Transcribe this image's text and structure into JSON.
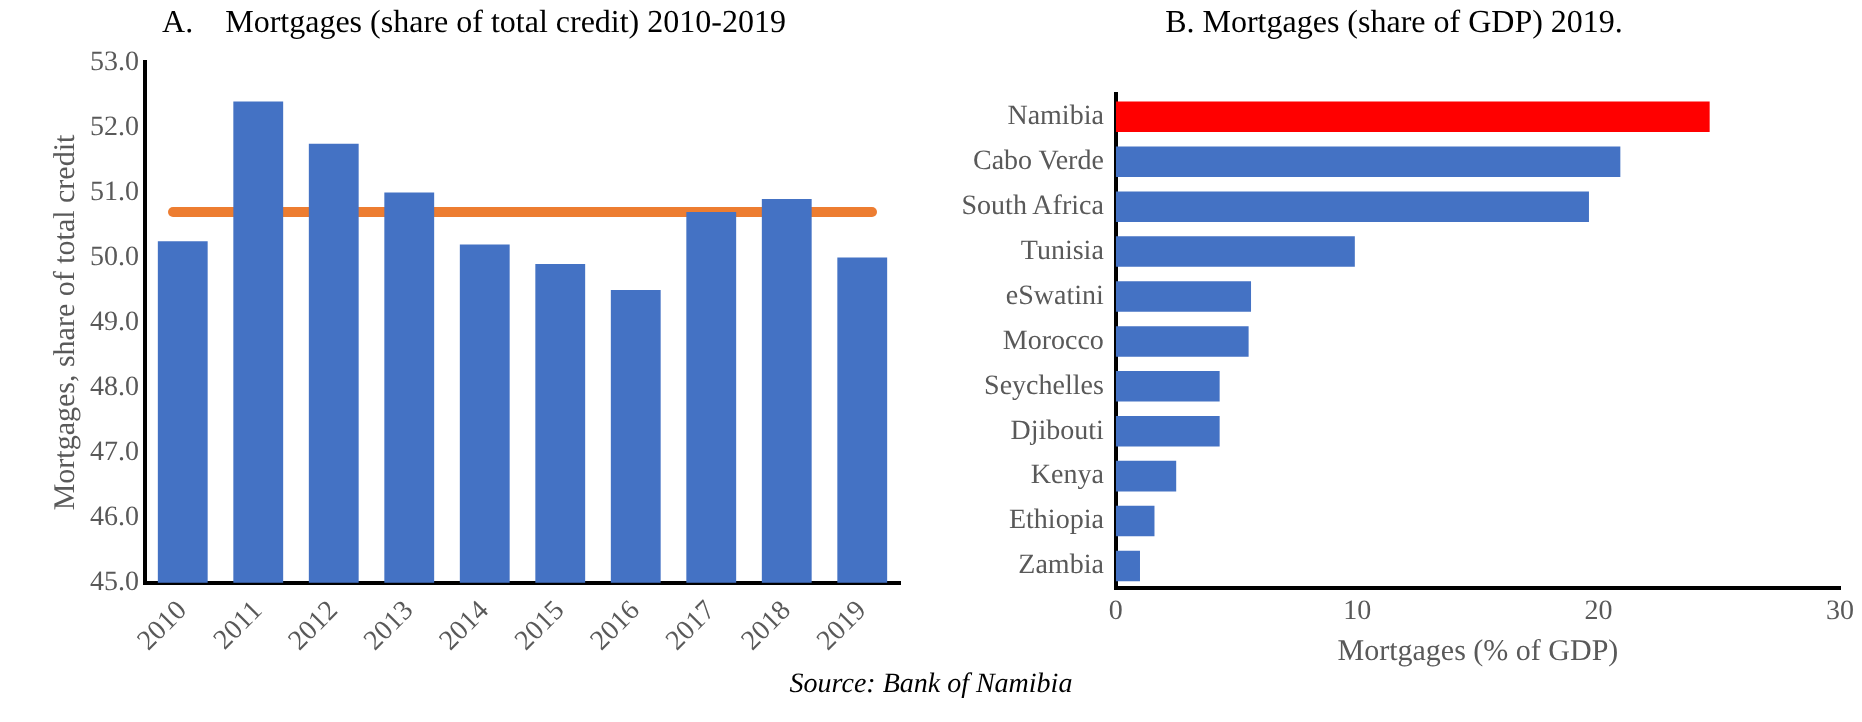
{
  "chart_data": [
    {
      "type": "bar",
      "title": "A.    Mortgages (share of total credit) 2010-2019",
      "ylabel": "Mortgages, share of total credit",
      "categories": [
        "2010",
        "2011",
        "2012",
        "2013",
        "2014",
        "2015",
        "2016",
        "2017",
        "2018",
        "2019"
      ],
      "values": [
        50.25,
        52.4,
        51.75,
        51.0,
        50.2,
        49.9,
        49.5,
        50.7,
        50.9,
        50.0
      ],
      "color": "#4472c4",
      "ylim": [
        45,
        53
      ],
      "yticks": [
        {
          "value": 45,
          "label": "45.0"
        },
        {
          "value": 46,
          "label": "46.0"
        },
        {
          "value": 47,
          "label": "47.0"
        },
        {
          "value": 48,
          "label": "48.0"
        },
        {
          "value": 49,
          "label": "49.0"
        },
        {
          "value": 50,
          "label": "50.0"
        },
        {
          "value": 51,
          "label": "51.0"
        },
        {
          "value": 52,
          "label": "52.0"
        },
        {
          "value": 53,
          "label": "53.0"
        }
      ],
      "ref_lines": [
        {
          "axis": "y",
          "value": 50.7,
          "color": "#ed7d31"
        }
      ],
      "grid": false,
      "legend": false
    },
    {
      "type": "bar",
      "orientation": "horizontal",
      "title": "B. Mortgages (share of GDP) 2019.",
      "xlabel": "Mortgages (% of GDP)",
      "categories": [
        "Namibia",
        "Cabo Verde",
        "South Africa",
        "Tunisia",
        "eSwatini",
        "Morocco",
        "Seychelles",
        "Djibouti",
        "Kenya",
        "Ethiopia",
        "Zambia"
      ],
      "values": [
        24.6,
        20.9,
        19.6,
        9.9,
        5.6,
        5.5,
        4.3,
        4.3,
        2.5,
        1.6,
        1.0
      ],
      "colors": [
        "#ff0000",
        "#4472c4",
        "#4472c4",
        "#4472c4",
        "#4472c4",
        "#4472c4",
        "#4472c4",
        "#4472c4",
        "#4472c4",
        "#4472c4",
        "#4472c4"
      ],
      "xlim": [
        0,
        30
      ],
      "xticks": [
        0,
        10,
        20,
        30
      ],
      "grid": false,
      "legend": false,
      "annotations": [
        "Source: Bank of Namibia"
      ]
    }
  ]
}
